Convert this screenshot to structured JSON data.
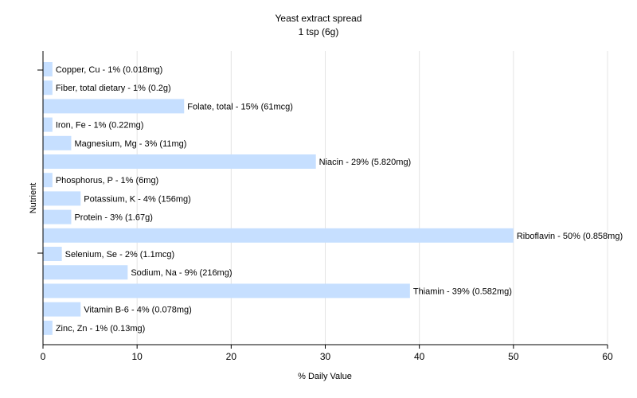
{
  "chart_data": {
    "type": "bar",
    "orientation": "horizontal",
    "title": "Yeast extract spread",
    "subtitle": "1 tsp (6g)",
    "xlabel": "% Daily Value",
    "ylabel": "Nutrient",
    "xlim": [
      0,
      60
    ],
    "xticks": [
      0,
      10,
      20,
      30,
      40,
      50,
      60
    ],
    "grid": true,
    "bar_color": "#c6dfff",
    "categories": [
      "Copper, Cu",
      "Fiber, total dietary",
      "Folate, total",
      "Iron, Fe",
      "Magnesium, Mg",
      "Niacin",
      "Phosphorus, P",
      "Potassium, K",
      "Protein",
      "Riboflavin",
      "Selenium, Se",
      "Sodium, Na",
      "Thiamin",
      "Vitamin B-6",
      "Zinc, Zn"
    ],
    "values": [
      1,
      1,
      15,
      1,
      3,
      29,
      1,
      4,
      3,
      50,
      2,
      9,
      39,
      4,
      1
    ],
    "labels": [
      "Copper, Cu - 1% (0.018mg)",
      "Fiber, total dietary - 1% (0.2g)",
      "Folate, total - 15% (61mcg)",
      "Iron, Fe - 1% (0.22mg)",
      "Magnesium, Mg - 3% (11mg)",
      "Niacin - 29% (5.820mg)",
      "Phosphorus, P - 1% (6mg)",
      "Potassium, K - 4% (156mg)",
      "Protein - 3% (1.67g)",
      "Riboflavin - 50% (0.858mg)",
      "Selenium, Se - 2% (1.1mcg)",
      "Sodium, Na - 9% (216mg)",
      "Thiamin - 39% (0.582mg)",
      "Vitamin B-6 - 4% (0.078mg)",
      "Zinc, Zn - 1% (0.13mg)"
    ]
  }
}
